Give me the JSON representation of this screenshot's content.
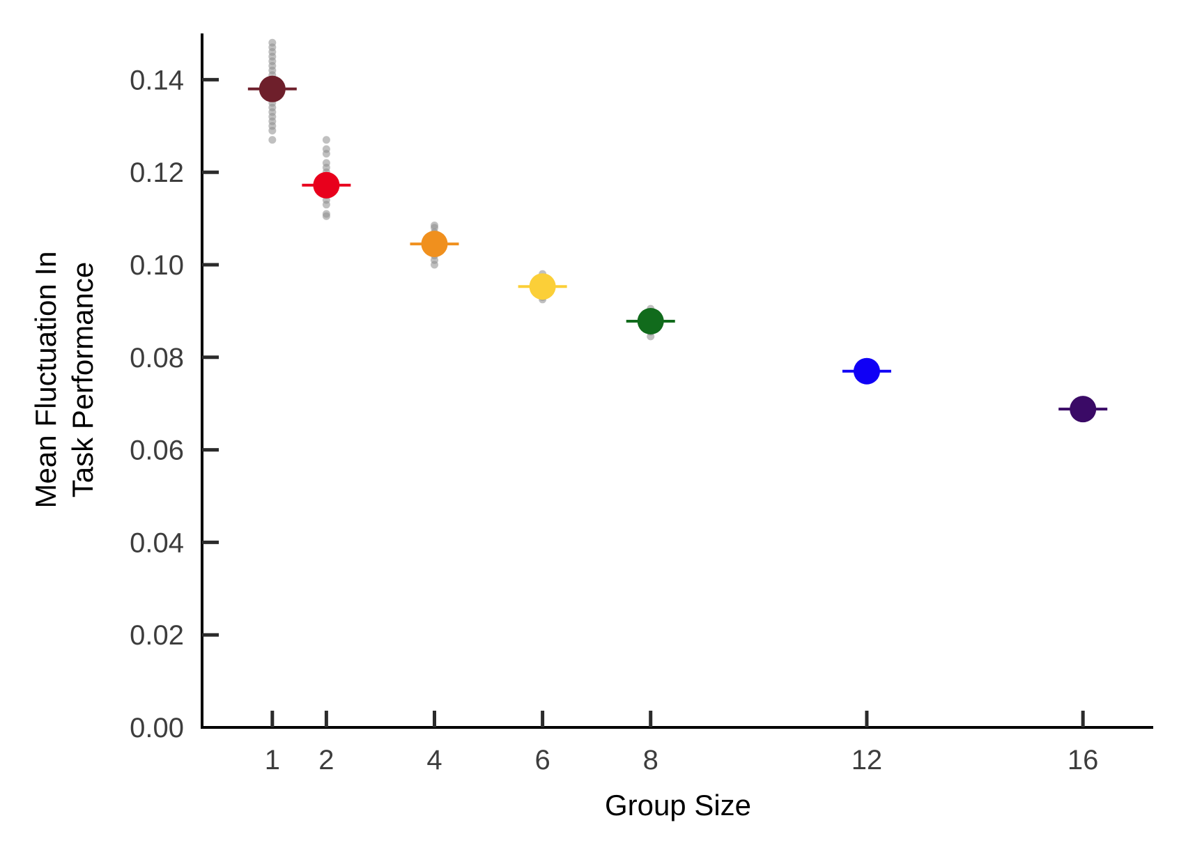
{
  "chart_data": {
    "type": "scatter",
    "title": "",
    "xlabel": "Group Size",
    "ylabel_lines": [
      "Mean Fluctuation In",
      "Task Performance"
    ],
    "x_ticks": [
      1,
      2,
      4,
      6,
      8,
      12,
      16
    ],
    "x_tick_labels": [
      "1",
      "2",
      "4",
      "6",
      "8",
      "12",
      "16"
    ],
    "y_ticks": [
      0.0,
      0.02,
      0.04,
      0.06,
      0.08,
      0.1,
      0.12,
      0.14
    ],
    "y_tick_labels": [
      "0.00",
      "0.02",
      "0.04",
      "0.06",
      "0.08",
      "0.10",
      "0.12",
      "0.14"
    ],
    "xlim": [
      -0.3,
      17.3
    ],
    "ylim": [
      0.0,
      0.15
    ],
    "grid": false,
    "legend": "none",
    "jitter_color": "#8c8c8c",
    "series": [
      {
        "x": 1,
        "mean": 0.138,
        "color": "#6e1f2b",
        "samples": [
          0.148,
          0.147,
          0.146,
          0.145,
          0.144,
          0.143,
          0.142,
          0.141,
          0.14,
          0.139,
          0.138,
          0.137,
          0.136,
          0.135,
          0.134,
          0.133,
          0.132,
          0.131,
          0.13,
          0.129,
          0.127
        ]
      },
      {
        "x": 2,
        "mean": 0.1172,
        "color": "#e8001c",
        "samples": [
          0.127,
          0.125,
          0.124,
          0.122,
          0.121,
          0.12,
          0.119,
          0.118,
          0.117,
          0.116,
          0.115,
          0.114,
          0.113,
          0.111,
          0.1105
        ]
      },
      {
        "x": 4,
        "mean": 0.1045,
        "color": "#f0901e",
        "samples": [
          0.1085,
          0.108,
          0.107,
          0.106,
          0.105,
          0.104,
          0.103,
          0.102,
          0.101,
          0.1
        ]
      },
      {
        "x": 6,
        "mean": 0.0953,
        "color": "#fbcf38",
        "samples": [
          0.098,
          0.097,
          0.096,
          0.0955,
          0.095,
          0.094,
          0.093,
          0.0925
        ]
      },
      {
        "x": 8,
        "mean": 0.0878,
        "color": "#116b1c",
        "samples": [
          0.0905,
          0.0895,
          0.0885,
          0.0875,
          0.0865,
          0.0855,
          0.0845
        ]
      },
      {
        "x": 12,
        "mean": 0.077,
        "color": "#1000f5",
        "samples": [
          0.0775,
          0.0765
        ]
      },
      {
        "x": 16,
        "mean": 0.0688,
        "color": "#3a0a66",
        "samples": [
          0.069,
          0.0685
        ]
      }
    ]
  }
}
